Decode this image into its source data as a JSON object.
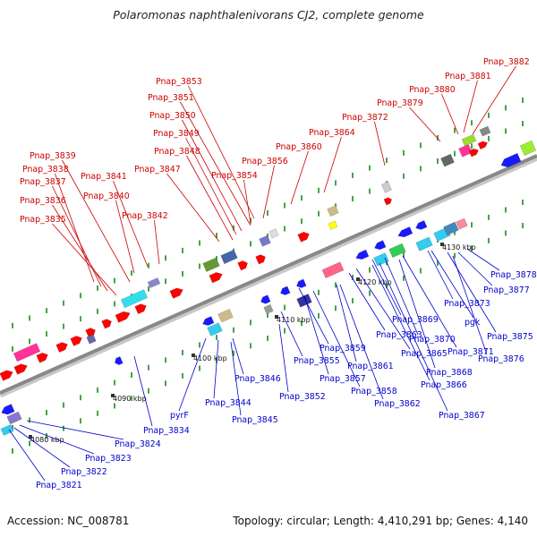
{
  "title": "Polaromonas naphthalenivorans CJ2, complete genome",
  "footer": {
    "accession": "Accession: NC_008781",
    "summary": "Topology: circular; Length: 4,410,291 bp; Genes: 4,140"
  },
  "colors": {
    "top_label": "#cc0000",
    "bottom_label": "#0000cc",
    "backbone": "#888888",
    "tick": "#1a8a1a",
    "forward_gene": "#ff0000",
    "reverse_gene": "#1a1aff"
  },
  "scale_labels": [
    "4080 kbp",
    "4090 kbp",
    "4100 kbp",
    "4110 kbp",
    "4120 kbp",
    "4130 kbp"
  ],
  "top_genes": [
    "Pnap_3835",
    "Pnap_3836",
    "Pnap_3837",
    "Pnap_3838",
    "Pnap_3839",
    "Pnap_3840",
    "Pnap_3841",
    "Pnap_3842",
    "Pnap_3847",
    "Pnap_3848",
    "Pnap_3849",
    "Pnap_3850",
    "Pnap_3851",
    "Pnap_3853",
    "Pnap_3854",
    "Pnap_3856",
    "Pnap_3860",
    "Pnap_3864",
    "Pnap_3872",
    "Pnap_3879",
    "Pnap_3880",
    "Pnap_3881",
    "Pnap_3882"
  ],
  "bottom_genes": [
    "Pnap_3821",
    "Pnap_3822",
    "Pnap_3823",
    "Pnap_3824",
    "Pnap_3834",
    "pyrF",
    "Pnap_3844",
    "Pnap_3845",
    "Pnap_3846",
    "Pnap_3852",
    "Pnap_3855",
    "Pnap_3857",
    "Pnap_3858",
    "Pnap_3859",
    "Pnap_3861",
    "Pnap_3862",
    "Pnap_3863",
    "Pnap_3865",
    "Pnap_3866",
    "Pnap_3867",
    "Pnap_3868",
    "Pnap_3869",
    "Pnap_3870",
    "Pnap_3871",
    "Pnap_3873",
    "pgk",
    "Pnap_3875",
    "Pnap_3876",
    "Pnap_3877",
    "Pnap_3878"
  ]
}
